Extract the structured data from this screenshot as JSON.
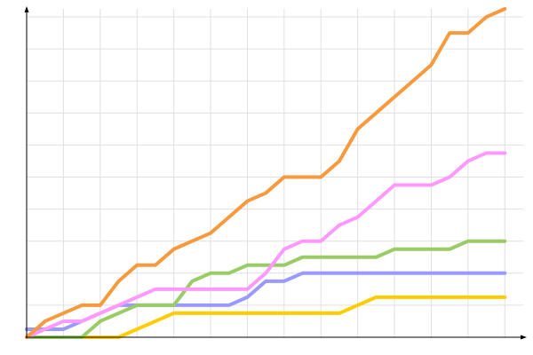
{
  "chart_data": {
    "type": "line",
    "x": [
      0,
      1,
      2,
      3,
      4,
      5,
      6,
      7,
      8,
      9,
      10,
      11,
      12,
      13,
      14,
      15,
      16,
      17,
      18,
      19,
      20,
      21,
      22,
      23,
      24,
      25,
      26
    ],
    "xlim": [
      0,
      27
    ],
    "xticks": [
      0,
      2,
      4,
      6,
      8,
      10,
      12,
      14,
      16,
      18,
      20,
      22,
      24,
      26
    ],
    "ylim": [
      0,
      10.25
    ],
    "yticks": [
      0,
      1,
      2,
      3,
      4,
      5,
      6,
      7,
      8,
      9,
      10
    ],
    "grid": true,
    "series": [
      {
        "color": "#ffcc00",
        "values": [
          0,
          0,
          0,
          0,
          0,
          0,
          0.25,
          0.5,
          0.75,
          0.75,
          0.75,
          0.75,
          0.75,
          0.75,
          0.75,
          0.75,
          0.75,
          0.75,
          1,
          1.25,
          1.25,
          1.25,
          1.25,
          1.25,
          1.25,
          1.25,
          1.25
        ]
      },
      {
        "color": "#9999ff",
        "values": [
          0.25,
          0.25,
          0.25,
          0.5,
          0.75,
          1,
          1,
          1,
          1,
          1,
          1,
          1,
          1.25,
          1.75,
          1.75,
          2,
          2,
          2,
          2,
          2,
          2,
          2,
          2,
          2,
          2,
          2,
          2
        ]
      },
      {
        "color": "#99cc66",
        "values": [
          0,
          0,
          0,
          0,
          0.5,
          0.75,
          1,
          1,
          1,
          1.75,
          2,
          2,
          2.25,
          2.25,
          2.25,
          2.5,
          2.5,
          2.5,
          2.5,
          2.5,
          2.75,
          2.75,
          2.75,
          2.75,
          3,
          3,
          3
        ]
      },
      {
        "color": "#ff99ff",
        "values": [
          0,
          0.25,
          0.5,
          0.5,
          0.75,
          1,
          1.25,
          1.5,
          1.5,
          1.5,
          1.5,
          1.5,
          1.5,
          2,
          2.75,
          3,
          3,
          3.5,
          3.75,
          4.25,
          4.75,
          4.75,
          4.75,
          5,
          5.5,
          5.75,
          5.75
        ]
      },
      {
        "color": "#f79a3e",
        "values": [
          0,
          0.5,
          0.75,
          1,
          1,
          1.75,
          2.25,
          2.25,
          2.75,
          3,
          3.25,
          3.75,
          4.25,
          4.5,
          5,
          5,
          5,
          5.5,
          6.5,
          7,
          7.5,
          8,
          8.5,
          9.5,
          9.5,
          10,
          10.25
        ]
      }
    ]
  }
}
